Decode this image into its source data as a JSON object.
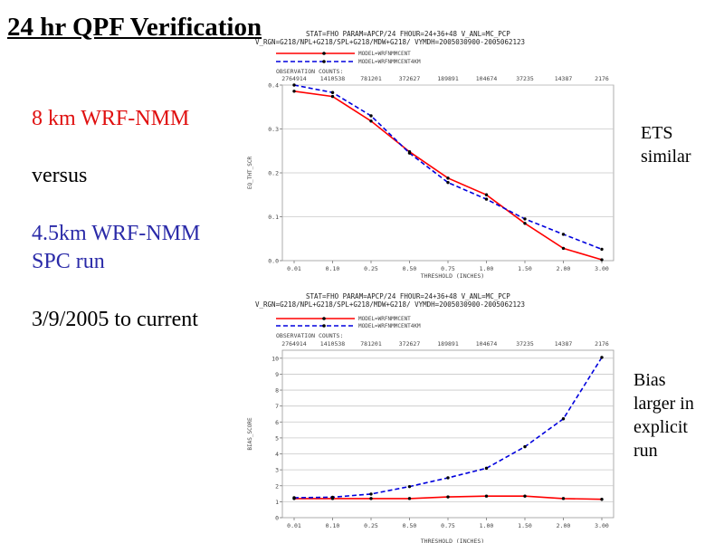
{
  "title": "24 hr QPF Verification",
  "left_panel": {
    "line1": "8 km WRF-NMM",
    "line2": "versus",
    "line3a": "4.5km WRF-NMM",
    "line3b": "SPC run",
    "line4": "3/9/2005 to current",
    "colors": {
      "red": "#e01010",
      "blue": "#2a2aa8",
      "black": "#000000"
    }
  },
  "notes": {
    "ets_line1": "ETS",
    "ets_line2": "similar",
    "bias_line1": "Bias",
    "bias_line2": "larger in",
    "bias_line3": "explicit",
    "bias_line4": "run"
  },
  "chart_data": [
    {
      "type": "line",
      "header_line1": "STAT=FHO PARAM=APCP/24 FHOUR=24+36+48 V_ANL=MC_PCP",
      "header_line2": "V_RGN=G218/NPL+G218/SPL+G218/MDW+G218/ VYMDH=2005030900-2005062123",
      "legend": [
        "MODEL=WRFNMMCENT",
        "MODEL=WRFNMMCENT4KM"
      ],
      "legend_position": "top-left",
      "obs_label": "OBSERVATION COUNTS:",
      "obs_counts": [
        "2764914",
        "1410538",
        "781201",
        "372627",
        "189891",
        "104674",
        "37235",
        "14387",
        "2176"
      ],
      "categories": [
        "0.01",
        "0.10",
        "0.25",
        "0.50",
        "0.75",
        "1.00",
        "1.50",
        "2.00",
        "3.00"
      ],
      "xlabel": "THRESHOLD (INCHES)",
      "ylabel": "EQ_THT_SCR",
      "ylim": [
        0,
        0.4
      ],
      "yticks": [
        "0.0",
        "0.1",
        "0.2",
        "0.3",
        "0.4"
      ],
      "grid": true,
      "series": [
        {
          "name": "MODEL=WRFNMMCENT",
          "color": "#ff0000",
          "dashed": false,
          "values": [
            0.386,
            0.374,
            0.318,
            0.248,
            0.188,
            0.15,
            0.085,
            0.028,
            0.002
          ]
        },
        {
          "name": "MODEL=WRFNMMCENT4KM",
          "color": "#0000dd",
          "dashed": true,
          "values": [
            0.4,
            0.383,
            0.33,
            0.245,
            0.178,
            0.14,
            0.095,
            0.06,
            0.026
          ]
        }
      ]
    },
    {
      "type": "line",
      "header_line1": "STAT=FHO PARAM=APCP/24 FHOUR=24+36+48 V_ANL=MC_PCP",
      "header_line2": "V_RGN=G218/NPL+G218/SPL+G218/MDW+G218/ VYMDH=2005030900-2005062123",
      "legend": [
        "MODEL=WRFNMMCENT",
        "MODEL=WRFNMMCENT4KM"
      ],
      "legend_position": "top-left",
      "obs_label": "OBSERVATION COUNTS:",
      "obs_counts": [
        "2764914",
        "1410538",
        "781201",
        "372627",
        "189891",
        "104674",
        "37235",
        "14387",
        "2176"
      ],
      "categories": [
        "0.01",
        "0.10",
        "0.25",
        "0.50",
        "0.75",
        "1.00",
        "1.50",
        "2.00",
        "3.00"
      ],
      "xlabel": "THRESHOLD (INCHES)",
      "ylabel": "BIAS_SCORE",
      "ylim": [
        0,
        10.5
      ],
      "yticks": [
        "0",
        "1",
        "2",
        "3",
        "4",
        "5",
        "6",
        "7",
        "8",
        "9",
        "10"
      ],
      "grid": true,
      "series": [
        {
          "name": "MODEL=WRFNMMCENT",
          "color": "#ff0000",
          "dashed": false,
          "values": [
            1.2,
            1.2,
            1.2,
            1.2,
            1.3,
            1.35,
            1.35,
            1.2,
            1.15
          ]
        },
        {
          "name": "MODEL=WRFNMMCENT4KM",
          "color": "#0000dd",
          "dashed": true,
          "values": [
            1.25,
            1.28,
            1.48,
            1.95,
            2.5,
            3.1,
            4.45,
            6.2,
            10.05
          ]
        }
      ]
    }
  ]
}
